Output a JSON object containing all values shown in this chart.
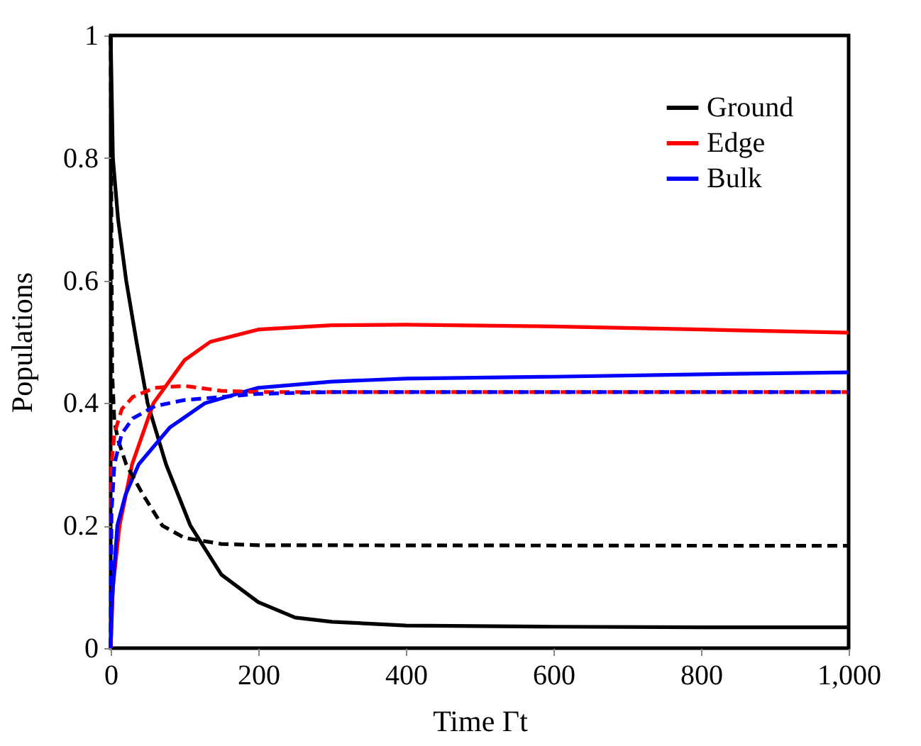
{
  "chart_data": {
    "type": "line",
    "xlabel": "Time Γt",
    "ylabel": "Populations",
    "xlim": [
      0,
      1000
    ],
    "ylim": [
      0,
      1
    ],
    "xticks": [
      0,
      200,
      400,
      600,
      800,
      {
        "value": 1000,
        "label": "1,000"
      }
    ],
    "yticks": [
      0,
      0.2,
      0.4,
      0.6,
      0.8,
      1
    ],
    "grid": false,
    "legend": "top right",
    "marker": "none",
    "series": [
      {
        "name": "Ground",
        "color": "#000000",
        "line_style": "solid",
        "x": [
          0,
          3,
          10,
          21,
          35,
          50,
          75,
          108,
          150,
          200,
          250,
          300,
          400,
          600,
          800,
          1000
        ],
        "values": [
          1.0,
          0.8,
          0.7,
          0.6,
          0.5,
          0.4,
          0.3,
          0.2,
          0.12,
          0.075,
          0.05,
          0.043,
          0.037,
          0.035,
          0.034,
          0.034
        ]
      },
      {
        "name": "Edge",
        "color": "#ff0000",
        "line_style": "solid",
        "x": [
          0,
          3,
          12,
          29,
          58,
          100,
          135,
          200,
          300,
          400,
          600,
          800,
          1000
        ],
        "values": [
          0,
          0.1,
          0.2,
          0.3,
          0.4,
          0.47,
          0.5,
          0.52,
          0.527,
          0.528,
          0.525,
          0.52,
          0.515
        ]
      },
      {
        "name": "Bulk",
        "color": "#0000ff",
        "line_style": "solid",
        "x": [
          0,
          2,
          9,
          20,
          38,
          80,
          128,
          200,
          300,
          400,
          600,
          800,
          1000
        ],
        "values": [
          0,
          0.08,
          0.2,
          0.25,
          0.3,
          0.36,
          0.4,
          0.425,
          0.435,
          0.44,
          0.443,
          0.447,
          0.45
        ]
      },
      {
        "color": "#000000",
        "line_style": "dashed",
        "x": [
          0,
          1,
          2,
          5,
          10,
          21,
          44,
          70,
          100,
          150,
          200,
          1000
        ],
        "values": [
          1.0,
          0.7,
          0.45,
          0.37,
          0.34,
          0.3,
          0.25,
          0.2,
          0.18,
          0.17,
          0.168,
          0.167
        ]
      },
      {
        "color": "#ff0000",
        "line_style": "dashed",
        "x": [
          0,
          1,
          5,
          15,
          30,
          60,
          100,
          150,
          200,
          1000
        ],
        "values": [
          0,
          0.3,
          0.35,
          0.39,
          0.41,
          0.425,
          0.428,
          0.42,
          0.418,
          0.418
        ]
      },
      {
        "color": "#0000ff",
        "line_style": "dashed",
        "x": [
          0,
          1,
          5,
          15,
          30,
          60,
          100,
          200,
          300,
          1000
        ],
        "values": [
          0,
          0.22,
          0.3,
          0.35,
          0.375,
          0.395,
          0.405,
          0.415,
          0.418,
          0.418
        ]
      }
    ]
  }
}
